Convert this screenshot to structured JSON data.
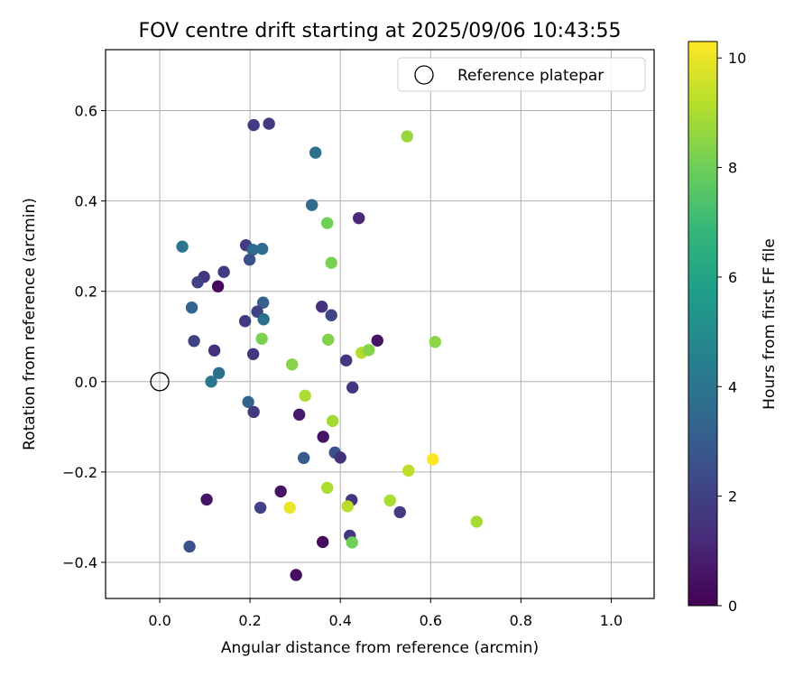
{
  "chart_data": {
    "type": "scatter",
    "title": "FOV centre drift starting at 2025/09/06 10:43:55",
    "xlabel": "Angular distance from reference (arcmin)",
    "ylabel": "Rotation from reference (arcmin)",
    "xlim": [
      -0.12,
      1.095
    ],
    "ylim": [
      -0.48,
      0.735
    ],
    "xticks": [
      0.0,
      0.2,
      0.4,
      0.6,
      0.8,
      1.0
    ],
    "xtick_labels": [
      "0.0",
      "0.2",
      "0.4",
      "0.6",
      "0.8",
      "1.0"
    ],
    "yticks": [
      -0.4,
      -0.2,
      0.0,
      0.2,
      0.4,
      0.6
    ],
    "ytick_labels": [
      "−0.4",
      "−0.2",
      "0.0",
      "0.2",
      "0.4",
      "0.6"
    ],
    "grid": true,
    "legend": {
      "position": "top-right",
      "entries": [
        "Reference platepar"
      ]
    },
    "reference_point": {
      "x": 0.0,
      "y": 0.0,
      "label": "Reference platepar"
    },
    "colorbar": {
      "label": "Hours from first FF file",
      "range": [
        0,
        10.3
      ],
      "ticks": [
        0,
        2,
        4,
        6,
        8,
        10
      ],
      "tick_labels": [
        "0",
        "2",
        "4",
        "6",
        "8",
        "10"
      ],
      "colormap": "viridis"
    },
    "colormap_stops": [
      "#440154",
      "#482878",
      "#3e4989",
      "#31688e",
      "#26828e",
      "#1f9e89",
      "#35b779",
      "#6ece58",
      "#b5de2b",
      "#fde725"
    ],
    "series": [
      {
        "name": "FOV centre",
        "points": [
          {
            "x": 0.208,
            "y": 0.568,
            "h": 1.8
          },
          {
            "x": 0.242,
            "y": 0.571,
            "h": 1.8
          },
          {
            "x": 0.345,
            "y": 0.507,
            "h": 3.8
          },
          {
            "x": 0.548,
            "y": 0.543,
            "h": 8.7
          },
          {
            "x": 0.337,
            "y": 0.391,
            "h": 3.6
          },
          {
            "x": 0.371,
            "y": 0.351,
            "h": 8.0
          },
          {
            "x": 0.441,
            "y": 0.362,
            "h": 1.2
          },
          {
            "x": 0.05,
            "y": 0.299,
            "h": 4.0
          },
          {
            "x": 0.191,
            "y": 0.302,
            "h": 1.8
          },
          {
            "x": 0.206,
            "y": 0.292,
            "h": 3.5
          },
          {
            "x": 0.227,
            "y": 0.294,
            "h": 3.6
          },
          {
            "x": 0.199,
            "y": 0.27,
            "h": 2.6
          },
          {
            "x": 0.38,
            "y": 0.263,
            "h": 8.2
          },
          {
            "x": 0.098,
            "y": 0.232,
            "h": 1.6
          },
          {
            "x": 0.084,
            "y": 0.22,
            "h": 2.0
          },
          {
            "x": 0.142,
            "y": 0.243,
            "h": 1.8
          },
          {
            "x": 0.129,
            "y": 0.211,
            "h": 0.2
          },
          {
            "x": 0.071,
            "y": 0.164,
            "h": 3.3
          },
          {
            "x": 0.229,
            "y": 0.175,
            "h": 3.2
          },
          {
            "x": 0.216,
            "y": 0.155,
            "h": 2.0
          },
          {
            "x": 0.189,
            "y": 0.134,
            "h": 1.8
          },
          {
            "x": 0.23,
            "y": 0.138,
            "h": 3.8
          },
          {
            "x": 0.359,
            "y": 0.166,
            "h": 1.5
          },
          {
            "x": 0.38,
            "y": 0.147,
            "h": 2.2
          },
          {
            "x": 0.076,
            "y": 0.09,
            "h": 2.0
          },
          {
            "x": 0.226,
            "y": 0.095,
            "h": 8.2
          },
          {
            "x": 0.373,
            "y": 0.093,
            "h": 8.3
          },
          {
            "x": 0.482,
            "y": 0.091,
            "h": 0.5
          },
          {
            "x": 0.61,
            "y": 0.088,
            "h": 8.5
          },
          {
            "x": 0.121,
            "y": 0.069,
            "h": 1.5
          },
          {
            "x": 0.207,
            "y": 0.061,
            "h": 1.6
          },
          {
            "x": 0.447,
            "y": 0.064,
            "h": 9.1
          },
          {
            "x": 0.463,
            "y": 0.07,
            "h": 8.4
          },
          {
            "x": 0.413,
            "y": 0.047,
            "h": 1.6
          },
          {
            "x": 0.293,
            "y": 0.038,
            "h": 8.4
          },
          {
            "x": 0.131,
            "y": 0.019,
            "h": 3.8
          },
          {
            "x": 0.114,
            "y": 0.0,
            "h": 4.0
          },
          {
            "x": 0.427,
            "y": -0.013,
            "h": 1.6
          },
          {
            "x": 0.322,
            "y": -0.031,
            "h": 9.0
          },
          {
            "x": 0.196,
            "y": -0.045,
            "h": 3.3
          },
          {
            "x": 0.208,
            "y": -0.067,
            "h": 1.8
          },
          {
            "x": 0.309,
            "y": -0.073,
            "h": 0.8
          },
          {
            "x": 0.383,
            "y": -0.087,
            "h": 8.9
          },
          {
            "x": 0.362,
            "y": -0.122,
            "h": 0.5
          },
          {
            "x": 0.388,
            "y": -0.157,
            "h": 2.6
          },
          {
            "x": 0.4,
            "y": -0.168,
            "h": 1.5
          },
          {
            "x": 0.319,
            "y": -0.169,
            "h": 3.0
          },
          {
            "x": 0.605,
            "y": -0.172,
            "h": 10.3
          },
          {
            "x": 0.551,
            "y": -0.197,
            "h": 9.3
          },
          {
            "x": 0.371,
            "y": -0.235,
            "h": 9.0
          },
          {
            "x": 0.268,
            "y": -0.243,
            "h": 0.5
          },
          {
            "x": 0.104,
            "y": -0.261,
            "h": 0.6
          },
          {
            "x": 0.425,
            "y": -0.262,
            "h": 1.6
          },
          {
            "x": 0.51,
            "y": -0.263,
            "h": 9.0
          },
          {
            "x": 0.223,
            "y": -0.279,
            "h": 2.0
          },
          {
            "x": 0.288,
            "y": -0.279,
            "h": 10.0
          },
          {
            "x": 0.416,
            "y": -0.276,
            "h": 9.2
          },
          {
            "x": 0.532,
            "y": -0.289,
            "h": 1.8
          },
          {
            "x": 0.702,
            "y": -0.31,
            "h": 8.9
          },
          {
            "x": 0.421,
            "y": -0.341,
            "h": 1.7
          },
          {
            "x": 0.426,
            "y": -0.356,
            "h": 8.0
          },
          {
            "x": 0.361,
            "y": -0.355,
            "h": 0.3
          },
          {
            "x": 0.066,
            "y": -0.365,
            "h": 2.6
          },
          {
            "x": 0.302,
            "y": -0.428,
            "h": 0.4
          }
        ]
      }
    ]
  }
}
